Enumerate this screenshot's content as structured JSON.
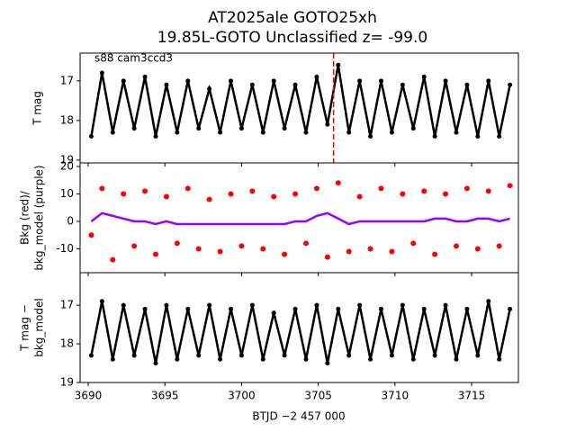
{
  "title": [
    "AT2025ale  GOTO25xh",
    "19.85L-GOTO Unclassified z= -99.0"
  ],
  "xlabel": "BTJD −2 457 000",
  "xlim": [
    3689.47,
    3718.05
  ],
  "xticks": [
    3690,
    3695,
    3700,
    3705,
    3710,
    3715
  ],
  "chart_data": [
    {
      "type": "line",
      "annotation": "s88 cam3ccd3",
      "ylabel": [
        "T mag"
      ],
      "invert_y": true,
      "ylim": [
        16.3,
        19.07
      ],
      "yticks": [
        17,
        18,
        19
      ],
      "color": "#000000",
      "vline": {
        "x": 3706.0,
        "color": "#ff0000"
      },
      "x": [
        3690.2,
        3690.9,
        3691.6,
        3692.3,
        3693.0,
        3693.7,
        3694.4,
        3695.1,
        3695.8,
        3696.5,
        3697.2,
        3697.9,
        3698.6,
        3699.3,
        3700.0,
        3700.7,
        3701.4,
        3702.1,
        3702.8,
        3703.5,
        3704.2,
        3704.9,
        3705.6,
        3706.3,
        3707.0,
        3707.7,
        3708.4,
        3709.1,
        3709.8,
        3710.5,
        3711.2,
        3711.9,
        3712.6,
        3713.3,
        3714.0,
        3714.7,
        3715.4,
        3716.1,
        3716.8,
        3717.5
      ],
      "values": [
        18.4,
        16.8,
        18.3,
        17.0,
        18.2,
        16.9,
        18.4,
        17.1,
        18.3,
        17.0,
        18.2,
        17.2,
        18.3,
        17.0,
        18.2,
        17.1,
        18.3,
        17.0,
        18.2,
        17.1,
        18.3,
        16.9,
        18.1,
        16.6,
        18.3,
        17.0,
        18.4,
        17.0,
        18.3,
        17.1,
        18.2,
        16.9,
        18.4,
        17.0,
        18.3,
        17.1,
        18.4,
        17.0,
        18.4,
        17.1
      ]
    },
    {
      "type": "scatter",
      "ylabel": [
        "Bkg (red)/",
        "bkg_model (purple)"
      ],
      "invert_y": false,
      "ylim": [
        -18.7,
        21.3
      ],
      "yticks": [
        -10,
        0,
        10,
        20
      ],
      "x": [
        3690.2,
        3690.9,
        3691.6,
        3692.3,
        3693.0,
        3693.7,
        3694.4,
        3695.1,
        3695.8,
        3696.5,
        3697.2,
        3697.9,
        3698.6,
        3699.3,
        3700.0,
        3700.7,
        3701.4,
        3702.1,
        3702.8,
        3703.5,
        3704.2,
        3704.9,
        3705.6,
        3706.3,
        3707.0,
        3707.7,
        3708.4,
        3709.1,
        3709.8,
        3710.5,
        3711.2,
        3711.9,
        3712.6,
        3713.3,
        3714.0,
        3714.7,
        3715.4,
        3716.1,
        3716.8,
        3717.5
      ],
      "series": [
        {
          "color": "#ff0000",
          "draw": "points",
          "values": [
            -5,
            12,
            -14,
            10,
            -9,
            11,
            -12,
            9,
            -8,
            12,
            -10,
            8,
            -11,
            10,
            -9,
            11,
            -10,
            9,
            -12,
            10,
            -8,
            12,
            -13,
            14,
            -11,
            9,
            -10,
            12,
            -11,
            10,
            -8,
            11,
            -12,
            10,
            -9,
            12,
            -10,
            11,
            -9,
            13
          ]
        },
        {
          "color": "#9900ff",
          "draw": "line",
          "values": [
            0,
            3,
            2,
            1,
            0,
            0,
            -1,
            0,
            -1,
            -1,
            -1,
            -1,
            -1,
            -1,
            -1,
            -1,
            -1,
            -1,
            -1,
            0,
            0,
            2,
            3,
            1,
            -1,
            0,
            0,
            0,
            0,
            0,
            0,
            0,
            1,
            1,
            0,
            0,
            1,
            1,
            0,
            1
          ]
        }
      ]
    },
    {
      "type": "line",
      "ylabel": [
        "T mag −",
        "bkg_model"
      ],
      "invert_y": true,
      "show_xticks": true,
      "ylim": [
        16.16,
        19.0
      ],
      "yticks": [
        17,
        18,
        19
      ],
      "color": "#000000",
      "x": [
        3690.2,
        3690.9,
        3691.6,
        3692.3,
        3693.0,
        3693.7,
        3694.4,
        3695.1,
        3695.8,
        3696.5,
        3697.2,
        3697.9,
        3698.6,
        3699.3,
        3700.0,
        3700.7,
        3701.4,
        3702.1,
        3702.8,
        3703.5,
        3704.2,
        3704.9,
        3705.6,
        3706.3,
        3707.0,
        3707.7,
        3708.4,
        3709.1,
        3709.8,
        3710.5,
        3711.2,
        3711.9,
        3712.6,
        3713.3,
        3714.0,
        3714.7,
        3715.4,
        3716.1,
        3716.8,
        3717.5
      ],
      "values": [
        18.3,
        16.9,
        18.4,
        17.0,
        18.3,
        17.1,
        18.5,
        17.0,
        18.4,
        17.1,
        18.3,
        17.0,
        18.4,
        17.1,
        18.3,
        17.0,
        18.4,
        17.2,
        18.3,
        17.1,
        18.4,
        17.0,
        18.5,
        17.1,
        18.3,
        17.0,
        18.4,
        17.1,
        18.3,
        17.0,
        18.4,
        17.1,
        18.3,
        17.0,
        18.4,
        17.1,
        18.3,
        16.9,
        18.4,
        17.1
      ]
    }
  ]
}
